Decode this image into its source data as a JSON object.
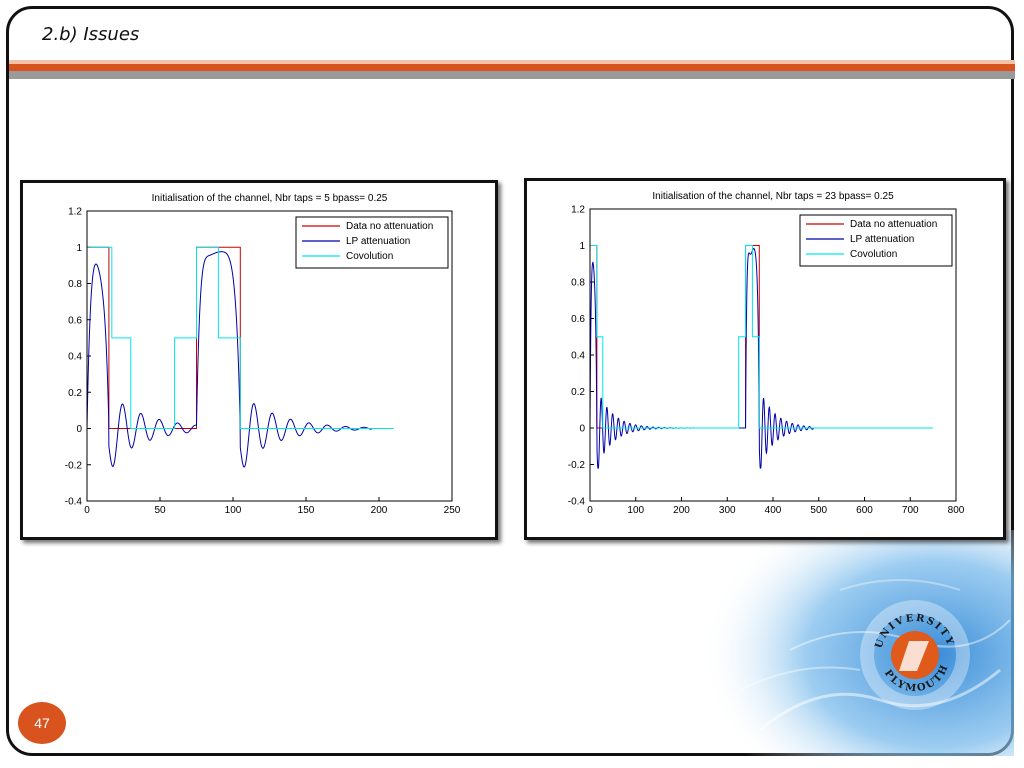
{
  "slide": {
    "title": "2.b) Issues",
    "page_number": "47",
    "logo_text": "UNIVERSITY of PLYMOUTH",
    "colors": {
      "accent": "#d9531e",
      "header_grey": "#9a9a9a",
      "water": "#5fa7e0"
    }
  },
  "chart_data": [
    {
      "type": "line",
      "title": "Initialisation of the channel,  Nbr taps = 5   bpass= 0.25",
      "xlabel": "",
      "ylabel": "",
      "xlim": [
        0,
        250
      ],
      "ylim": [
        -0.4,
        1.2
      ],
      "xticks": [
        "0",
        "50",
        "100",
        "150",
        "200",
        "250"
      ],
      "yticks": [
        "1.2",
        "1",
        "0.8",
        "0.6",
        "0.4",
        "0.2",
        "0",
        "-0.2",
        "-0.4"
      ],
      "legend_position": "top-right",
      "series": [
        {
          "name": "Data no attenuation",
          "color": "#cc0000",
          "kind": "data",
          "pulses": [
            [
              0,
              15
            ],
            [
              75,
              105
            ]
          ],
          "end": 185
        },
        {
          "name": "LP attenuation",
          "color": "#0000aa",
          "kind": "lp",
          "pulses": [
            [
              0,
              15
            ],
            [
              75,
              105
            ]
          ],
          "end": 195,
          "omega": 0.5,
          "decay": 0.04,
          "amp": 0.2
        },
        {
          "name": "Covolution",
          "color": "#00e5ee",
          "kind": "conv",
          "steps": [
            [
              0,
              1
            ],
            [
              2,
              1
            ],
            [
              17,
              0.5
            ],
            [
              30,
              0
            ],
            [
              60,
              0.5
            ],
            [
              75,
              1
            ],
            [
              90,
              0.5
            ],
            [
              105,
              0
            ],
            [
              210,
              0
            ]
          ]
        }
      ]
    },
    {
      "type": "line",
      "title": "Initialisation of the channel,  Nbr taps = 23   bpass= 0.25",
      "xlabel": "",
      "ylabel": "",
      "xlim": [
        0,
        800
      ],
      "ylim": [
        -0.4,
        1.2
      ],
      "xticks": [
        "0",
        "100",
        "200",
        "300",
        "400",
        "500",
        "600",
        "700",
        "800"
      ],
      "yticks": [
        "1.2",
        "1",
        "0.8",
        "0.6",
        "0.4",
        "0.2",
        "0",
        "-0.2",
        "-0.4"
      ],
      "legend_position": "top-right",
      "series": [
        {
          "name": "Data no attenuation",
          "color": "#cc0000",
          "kind": "data",
          "pulses": [
            [
              0,
              15
            ],
            [
              340,
              370
            ]
          ],
          "end": 480
        },
        {
          "name": "LP attenuation",
          "color": "#0000aa",
          "kind": "lp",
          "pulses": [
            [
              0,
              15
            ],
            [
              340,
              370
            ]
          ],
          "end": 490,
          "omega": 0.5,
          "decay": 0.03,
          "amp": 0.22
        },
        {
          "name": "Covolution",
          "color": "#00e5ee",
          "kind": "conv",
          "steps": [
            [
              0,
              1
            ],
            [
              2,
              1
            ],
            [
              15,
              0.5
            ],
            [
              28,
              0
            ],
            [
              325,
              0.5
            ],
            [
              340,
              1
            ],
            [
              355,
              0.5
            ],
            [
              370,
              0
            ],
            [
              750,
              0
            ]
          ]
        }
      ]
    }
  ]
}
